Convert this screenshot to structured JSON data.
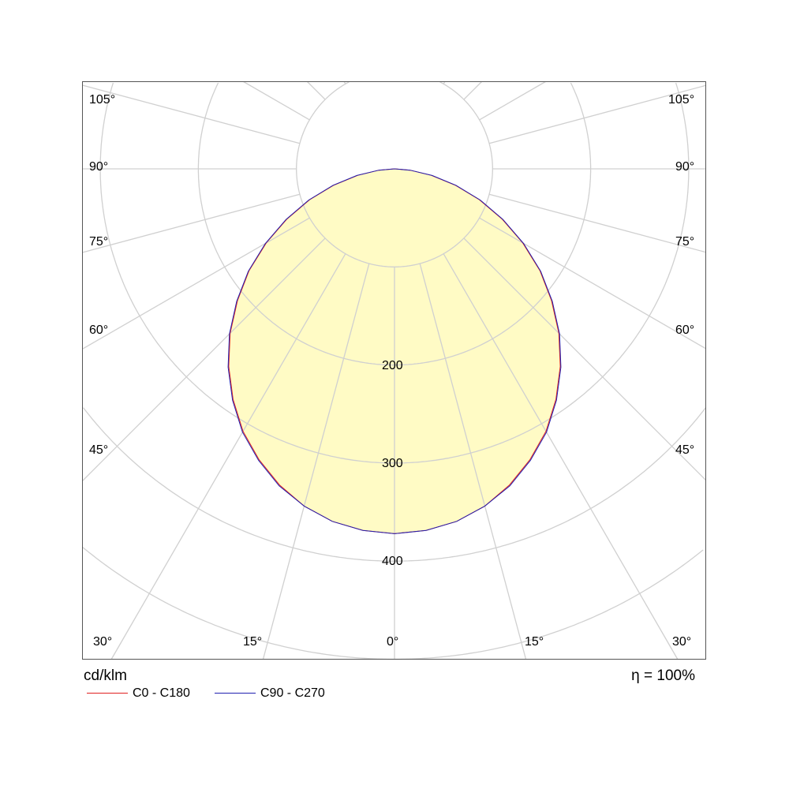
{
  "chart_data": {
    "type": "polar",
    "unit_label": "cd/klm",
    "efficiency_label": "η = 100%",
    "radial_ticks": [
      100,
      200,
      300,
      400,
      500,
      600
    ],
    "radial_tick_labels": [
      "200",
      "300",
      "400"
    ],
    "angle_labels_left": [
      "105°",
      "90°",
      "75°",
      "60°",
      "45°",
      "30°",
      "15°"
    ],
    "angle_label_center": "0°",
    "angle_labels_right": [
      "15°",
      "30°",
      "45°",
      "60°",
      "75°",
      "90°",
      "105°"
    ],
    "spoke_step_deg": 15,
    "angles": [
      0,
      5,
      10,
      15,
      20,
      25,
      30,
      35,
      40,
      45,
      50,
      55,
      60,
      65,
      70,
      75,
      80,
      85,
      90
    ],
    "series": [
      {
        "name": "C0 - C180",
        "color": "#e02020",
        "values": [
          372,
          370,
          365,
          356,
          343,
          327,
          309,
          287,
          263,
          237,
          209,
          181,
          151,
          121,
          92,
          64,
          38,
          16,
          0
        ]
      },
      {
        "name": "C90 - C270",
        "color": "#2020b0",
        "values": [
          372,
          370,
          365,
          356,
          344,
          328,
          310,
          288,
          264,
          238,
          210,
          182,
          152,
          122,
          93,
          65,
          39,
          16,
          0
        ]
      }
    ],
    "fill_color": "#fffbbf",
    "grid_color": "#d0d0d0",
    "grid": true
  }
}
